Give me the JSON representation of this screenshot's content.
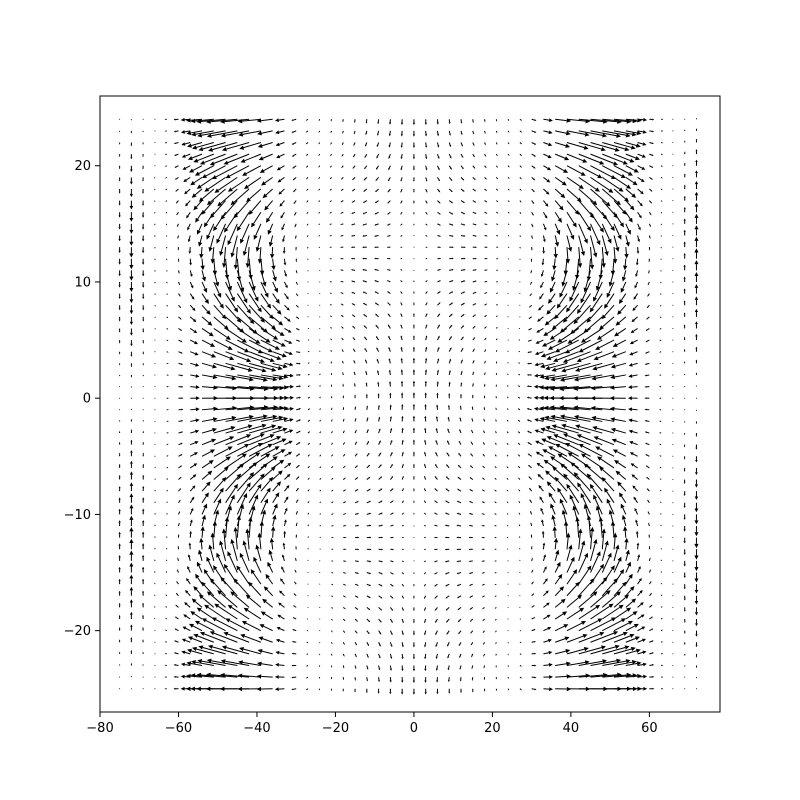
{
  "chart_data": {
    "type": "quiver",
    "title": "",
    "xlabel": "",
    "ylabel": "",
    "xlim": [
      -80,
      78
    ],
    "ylim": [
      -27,
      26
    ],
    "grid": false,
    "legend": "none",
    "xticks": [
      -80,
      -60,
      -40,
      -20,
      0,
      20,
      40,
      60
    ],
    "xtick_labels": [
      "−80",
      "−60",
      "−40",
      "−20",
      "0",
      "20",
      "40",
      "60"
    ],
    "yticks": [
      -20,
      -10,
      0,
      10,
      20
    ],
    "ytick_labels": [
      "−20",
      "−10",
      "0",
      "10",
      "20"
    ],
    "grid_x": {
      "start": -75,
      "stop": 72,
      "step": 3
    },
    "grid_y": {
      "start": -25,
      "stop": 24,
      "step": 1
    },
    "field_note": "vector field: strong horizontal flow bands near x=±45 rotating with y, weak flow in central region",
    "vector_color": "#000000"
  }
}
